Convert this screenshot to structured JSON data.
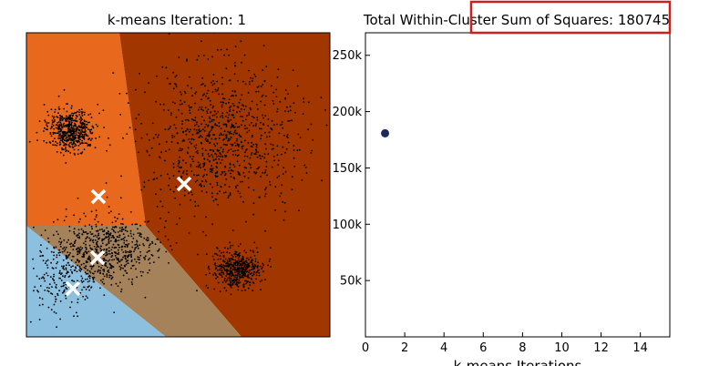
{
  "chart_data": [
    {
      "type": "scatter",
      "title": "k-means Iteration: 1",
      "xlabel": "",
      "ylabel": "",
      "axes": "off",
      "grid": false,
      "regions": [
        {
          "name": "cluster-1",
          "color": "#e8681e"
        },
        {
          "name": "cluster-2",
          "color": "#a23600"
        },
        {
          "name": "cluster-3",
          "color": "#a6825a"
        },
        {
          "name": "cluster-4",
          "color": "#8dbfdf"
        }
      ],
      "centroid_marker": "x",
      "centroid_color": "#ffffff",
      "point_color": "#000000"
    },
    {
      "type": "scatter",
      "title": "Total Within-Cluster Sum of Squares: 180745",
      "xlabel": "k-means Iterations",
      "ylabel": "",
      "xlim": [
        0,
        15.5
      ],
      "ylim": [
        0,
        270000
      ],
      "xticks": [
        {
          "value": 0,
          "label": "0"
        },
        {
          "value": 2,
          "label": "2"
        },
        {
          "value": 4,
          "label": "4"
        },
        {
          "value": 6,
          "label": "6"
        },
        {
          "value": 8,
          "label": "8"
        },
        {
          "value": 10,
          "label": "10"
        },
        {
          "value": 12,
          "label": "12"
        },
        {
          "value": 14,
          "label": "14"
        }
      ],
      "yticks": [
        {
          "value": 50000,
          "label": "50k"
        },
        {
          "value": 100000,
          "label": "100k"
        },
        {
          "value": 150000,
          "label": "150k"
        },
        {
          "value": 200000,
          "label": "200k"
        },
        {
          "value": 250000,
          "label": "250k"
        }
      ],
      "grid": false,
      "series": [
        {
          "x": [
            1
          ],
          "y": [
            180745
          ],
          "color": "#1b2a5a"
        }
      ]
    }
  ],
  "colors": {
    "highlight_box": "#cc1f1f"
  }
}
